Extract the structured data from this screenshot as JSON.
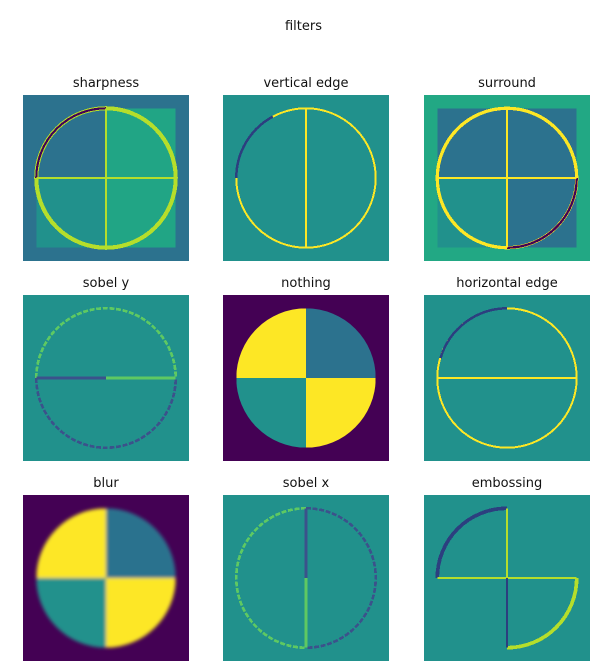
{
  "figure": {
    "title": "filters"
  },
  "panels": [
    {
      "title": "sharpness",
      "colors": {
        "bg": "#2c728e",
        "q1": "#2c728e",
        "q2": "#21a585",
        "q3": "#21918c",
        "q4": "#21a585",
        "line": "#b5de2b",
        "dark": "#440154"
      }
    },
    {
      "title": "vertical edge",
      "colors": {
        "bg": "#21918c",
        "q1": "#21918c",
        "q2": "#21918c",
        "q3": "#21918c",
        "q4": "#21918c",
        "line": "#fde725",
        "dark": "#2c3f7f"
      }
    },
    {
      "title": "surround",
      "colors": {
        "bg": "#22a884",
        "q1": "#2c728e",
        "q2": "#2c728e",
        "q3": "#21918c",
        "q4": "#2c728e",
        "line": "#fde725",
        "dark": "#440154"
      }
    },
    {
      "title": "sobel y",
      "colors": {
        "bg": "#21918c",
        "q1": "#21918c",
        "q2": "#21918c",
        "q3": "#21918c",
        "q4": "#21918c",
        "line": "#5ec962",
        "dark": "#3b528b"
      }
    },
    {
      "title": "nothing",
      "colors": {
        "bg": "#440154",
        "q1": "#2c728e",
        "q2": "#fde725",
        "q3": "#21918c",
        "q4": "#fde725",
        "line": "#21918c",
        "dark": "#440154"
      }
    },
    {
      "title": "horizontal edge",
      "colors": {
        "bg": "#21918c",
        "q1": "#21918c",
        "q2": "#21918c",
        "q3": "#21918c",
        "q4": "#21918c",
        "line": "#fde725",
        "dark": "#2c3f7f"
      }
    },
    {
      "title": "blur",
      "colors": {
        "bg": "#440154",
        "q1": "#2c728e",
        "q2": "#fde725",
        "q3": "#21918c",
        "q4": "#fde725",
        "line": "#21918c",
        "dark": "#440154"
      }
    },
    {
      "title": "sobel x",
      "colors": {
        "bg": "#21918c",
        "q1": "#21918c",
        "q2": "#21918c",
        "q3": "#21918c",
        "q4": "#21918c",
        "line": "#5ec962",
        "dark": "#3b528b"
      }
    },
    {
      "title": "embossing",
      "colors": {
        "bg": "#21918c",
        "q1": "#21918c",
        "q2": "#21918c",
        "q3": "#21918c",
        "q4": "#21918c",
        "line": "#b5de2b",
        "dark": "#2c3f7f"
      }
    }
  ]
}
